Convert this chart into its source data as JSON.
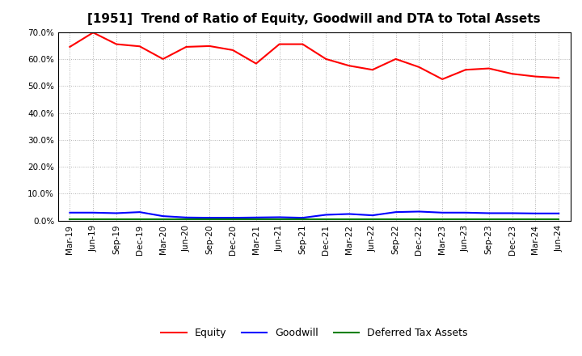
{
  "title": "[1951]  Trend of Ratio of Equity, Goodwill and DTA to Total Assets",
  "x_labels": [
    "Mar-19",
    "Jun-19",
    "Sep-19",
    "Dec-19",
    "Mar-20",
    "Jun-20",
    "Sep-20",
    "Dec-20",
    "Mar-21",
    "Jun-21",
    "Sep-21",
    "Dec-21",
    "Mar-22",
    "Jun-22",
    "Sep-22",
    "Dec-22",
    "Mar-23",
    "Jun-23",
    "Sep-23",
    "Dec-23",
    "Mar-24",
    "Jun-24"
  ],
  "equity": [
    0.645,
    0.698,
    0.655,
    0.647,
    0.6,
    0.645,
    0.648,
    0.633,
    0.583,
    0.655,
    0.655,
    0.6,
    0.575,
    0.56,
    0.6,
    0.57,
    0.525,
    0.56,
    0.565,
    0.545,
    0.535,
    0.53
  ],
  "goodwill": [
    0.03,
    0.03,
    0.028,
    0.032,
    0.017,
    0.012,
    0.011,
    0.011,
    0.012,
    0.013,
    0.011,
    0.022,
    0.025,
    0.02,
    0.032,
    0.034,
    0.03,
    0.03,
    0.028,
    0.028,
    0.027,
    0.027
  ],
  "dta": [
    0.005,
    0.005,
    0.005,
    0.005,
    0.005,
    0.005,
    0.005,
    0.005,
    0.005,
    0.005,
    0.005,
    0.005,
    0.005,
    0.005,
    0.005,
    0.005,
    0.005,
    0.005,
    0.005,
    0.005,
    0.005,
    0.005
  ],
  "equity_color": "#ff0000",
  "goodwill_color": "#0000ff",
  "dta_color": "#008000",
  "ylim": [
    0.0,
    0.7
  ],
  "yticks": [
    0.0,
    0.1,
    0.2,
    0.3,
    0.4,
    0.5,
    0.6,
    0.7
  ],
  "background_color": "#ffffff",
  "plot_bg_color": "#ffffff",
  "grid_color": "#b0b0b0",
  "title_fontsize": 11,
  "tick_fontsize": 7.5,
  "legend_fontsize": 9
}
